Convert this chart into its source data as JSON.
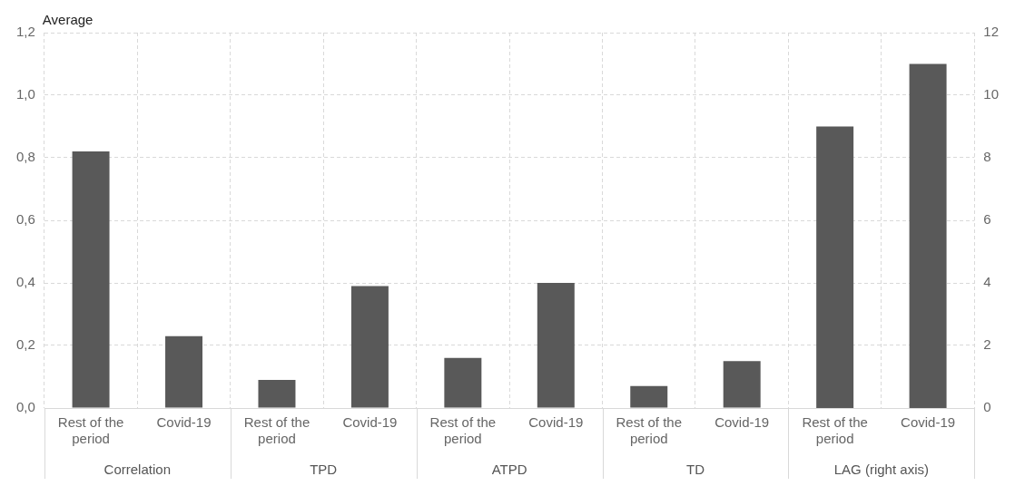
{
  "chart_data": {
    "type": "bar",
    "ylabel": "Average",
    "categories": [
      "Rest of the period",
      "Covid-19",
      "Rest of the period",
      "Covid-19",
      "Rest of the period",
      "Covid-19",
      "Rest of the period",
      "Covid-19",
      "Rest of the period",
      "Covid-19"
    ],
    "series": [
      {
        "color": "#595959",
        "values": [
          0.82,
          0.23,
          0.09,
          0.39,
          0.16,
          0.4,
          0.07,
          0.15,
          null,
          null
        ]
      },
      {
        "color": "#595959",
        "axis": "y2",
        "values": [
          null,
          null,
          null,
          null,
          null,
          null,
          null,
          null,
          9.0,
          11.0
        ]
      }
    ],
    "ylim": [
      0,
      1.2
    ],
    "yticks": [
      {
        "value": 0,
        "label": "0,0"
      },
      {
        "value": 0.2,
        "label": "0,2"
      },
      {
        "value": 0.4,
        "label": "0,4"
      },
      {
        "value": 0.6,
        "label": "0,6"
      },
      {
        "value": 0.8,
        "label": "0,8"
      },
      {
        "value": 1.0,
        "label": "1,0"
      },
      {
        "value": 1.2,
        "label": "1,2"
      }
    ],
    "y2lim": [
      0,
      12
    ],
    "y2ticks": [
      0,
      2,
      4,
      6,
      8,
      10,
      12
    ],
    "annotations": [
      "Correlation",
      "TPD",
      "ATPD",
      "TD",
      "LAG (right axis)"
    ],
    "grid": true,
    "legend": false
  }
}
